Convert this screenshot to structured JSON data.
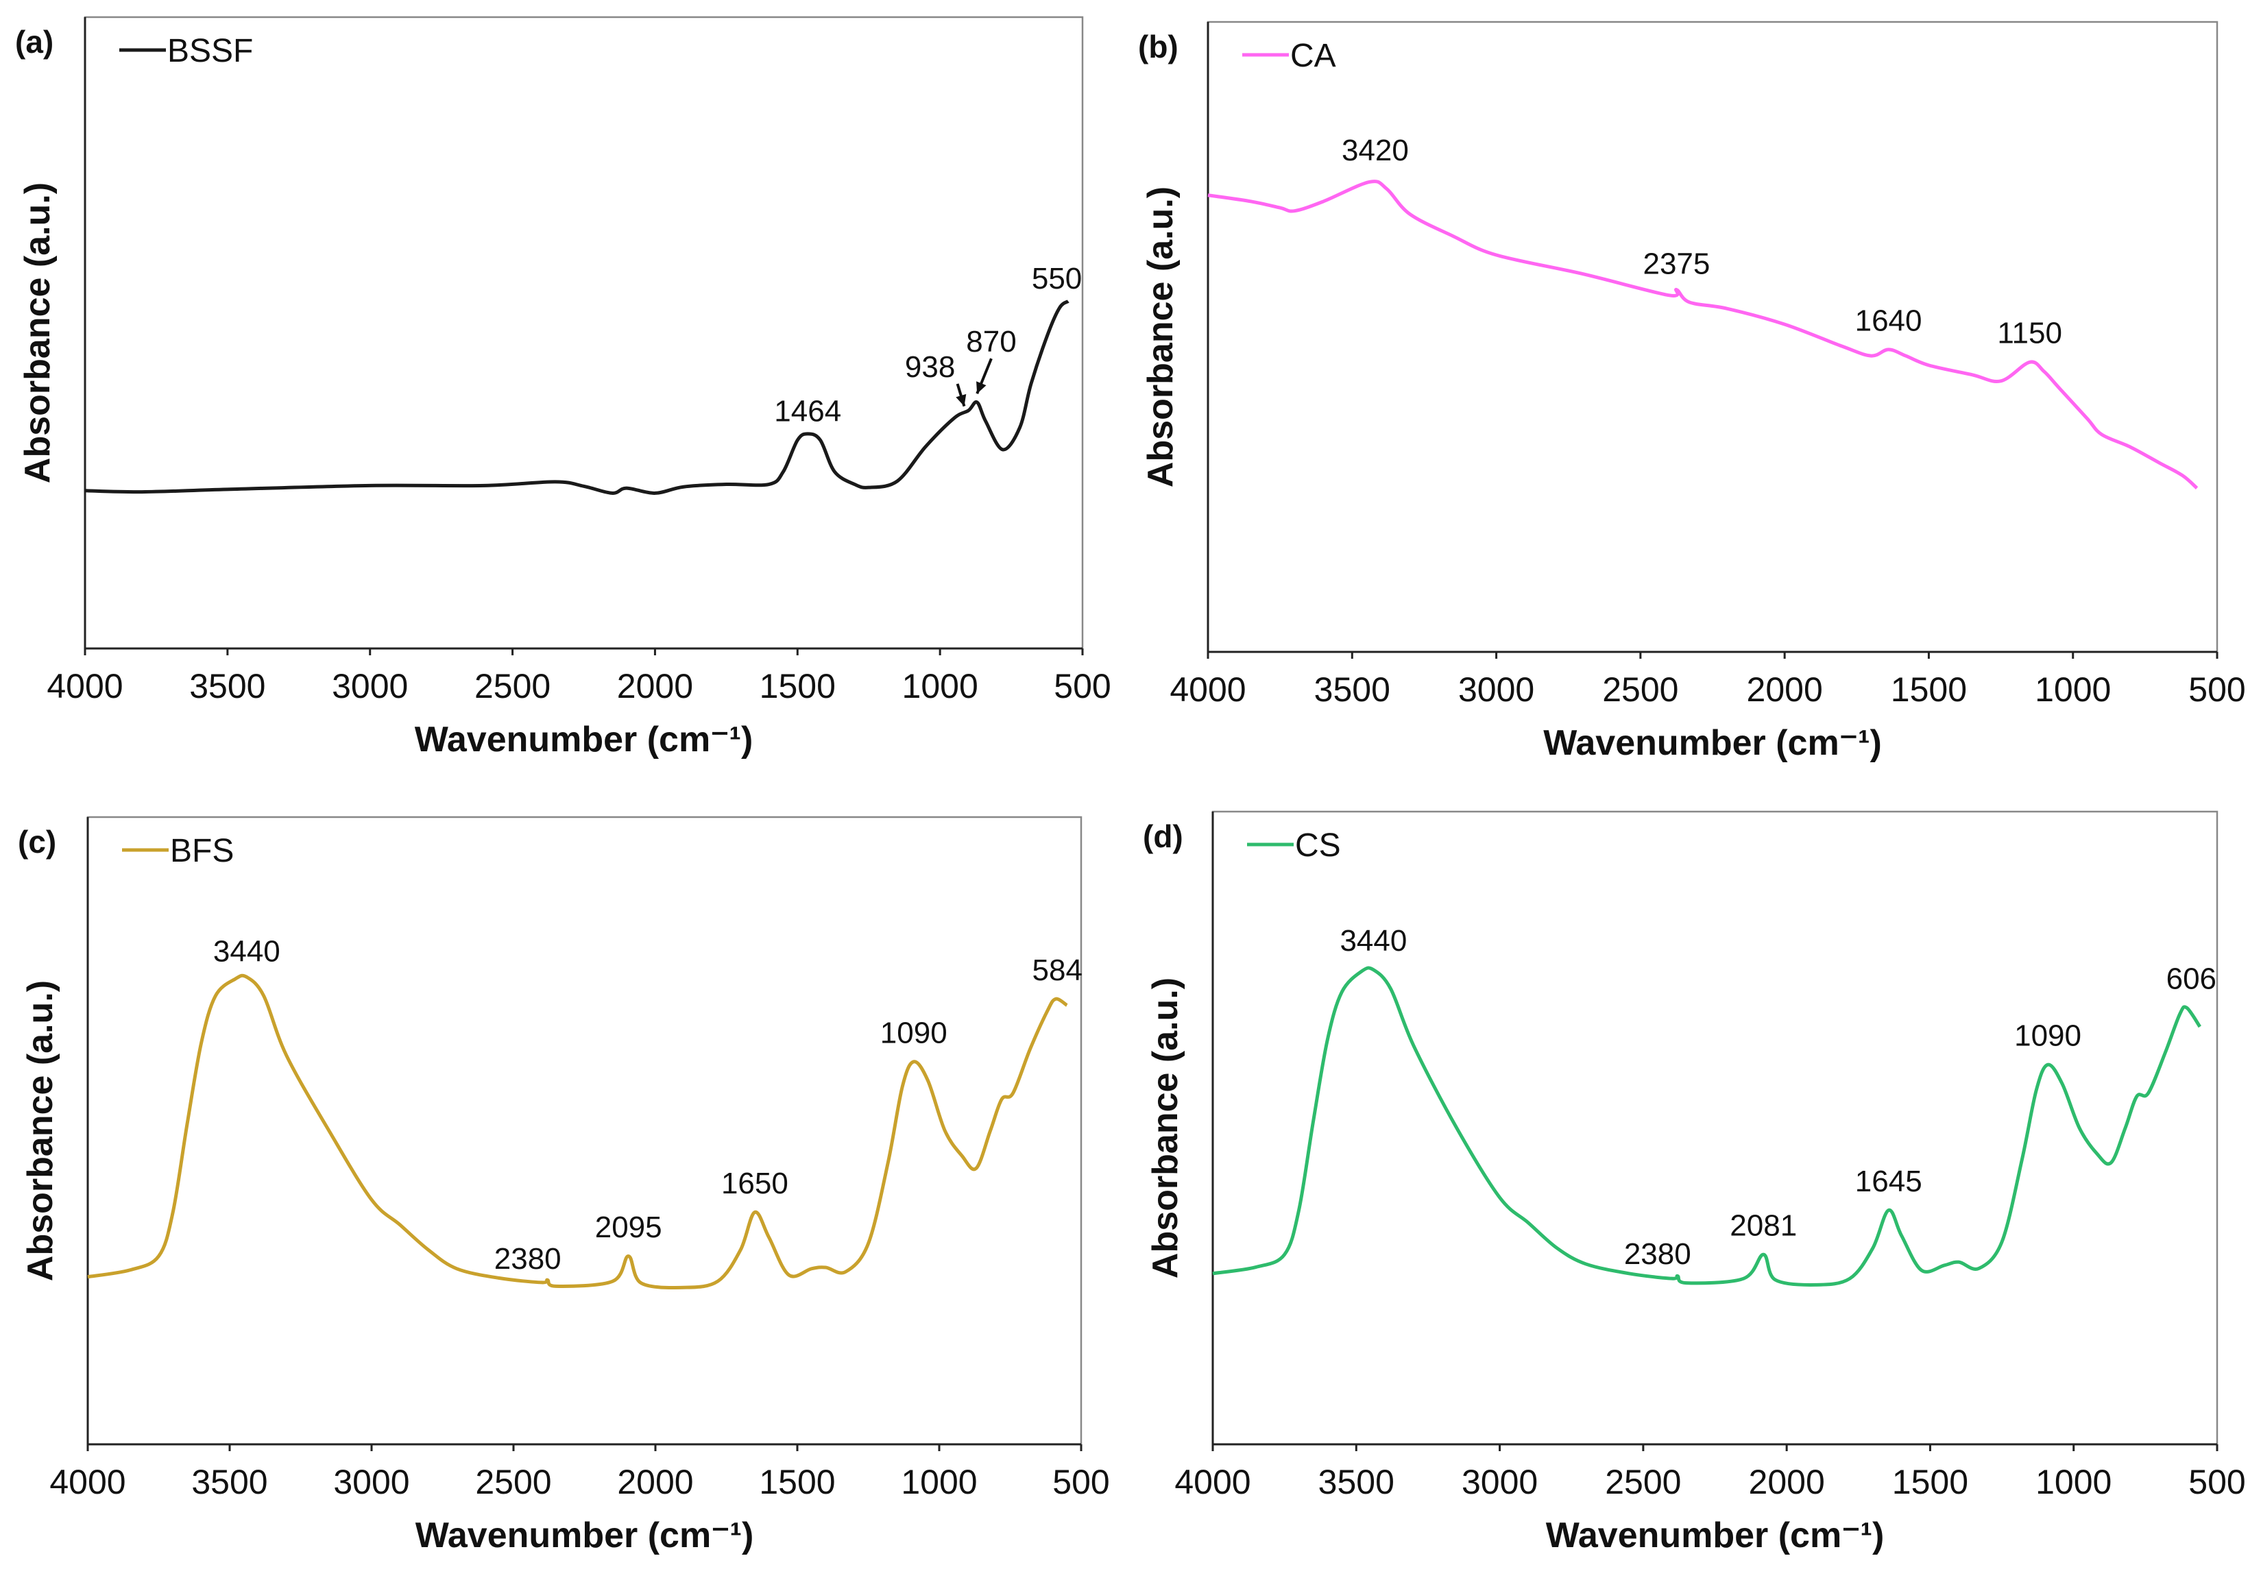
{
  "chart_data": [
    {
      "panel": "(a)",
      "type": "line",
      "legend": "BSSF",
      "color": "#1a1a1a",
      "xlabel": "Wavenumber (cm⁻¹)",
      "ylabel": "Absorbance (a.u.)",
      "xlim": [
        4000,
        500
      ],
      "ylim": [
        0,
        1
      ],
      "xticks": [
        "4000",
        "3500",
        "3000",
        "2500",
        "2000",
        "1500",
        "1000",
        "500"
      ],
      "points": [
        [
          4000,
          0.25
        ],
        [
          3800,
          0.248
        ],
        [
          3500,
          0.252
        ],
        [
          3000,
          0.258
        ],
        [
          2600,
          0.258
        ],
        [
          2350,
          0.264
        ],
        [
          2250,
          0.257
        ],
        [
          2150,
          0.246
        ],
        [
          2100,
          0.254
        ],
        [
          2000,
          0.246
        ],
        [
          1900,
          0.256
        ],
        [
          1750,
          0.26
        ],
        [
          1600,
          0.26
        ],
        [
          1550,
          0.28
        ],
        [
          1500,
          0.33
        ],
        [
          1464,
          0.34
        ],
        [
          1420,
          0.33
        ],
        [
          1370,
          0.28
        ],
        [
          1300,
          0.26
        ],
        [
          1250,
          0.255
        ],
        [
          1150,
          0.265
        ],
        [
          1050,
          0.32
        ],
        [
          950,
          0.365
        ],
        [
          900,
          0.377
        ],
        [
          870,
          0.39
        ],
        [
          840,
          0.36
        ],
        [
          780,
          0.315
        ],
        [
          720,
          0.35
        ],
        [
          680,
          0.42
        ],
        [
          620,
          0.5
        ],
        [
          580,
          0.54
        ],
        [
          550,
          0.55
        ]
      ],
      "annotations": [
        {
          "label": "1464",
          "x": 1464,
          "y": 0.36
        },
        {
          "label": "938",
          "x": 1035,
          "y": 0.43,
          "arrow_to": [
            915,
            0.375
          ]
        },
        {
          "label": "870",
          "x": 820,
          "y": 0.47,
          "arrow_to": [
            870,
            0.395
          ]
        },
        {
          "label": "550",
          "x": 590,
          "y": 0.57
        }
      ]
    },
    {
      "panel": "(b)",
      "type": "line",
      "legend": "CA",
      "color": "#ff66f2",
      "xlabel": "Wavenumber (cm⁻¹)",
      "ylabel": "Absorbance (a.u.)",
      "xlim": [
        4000,
        500
      ],
      "ylim": [
        0,
        1
      ],
      "xticks": [
        "4000",
        "3500",
        "3000",
        "2500",
        "2000",
        "1500",
        "1000",
        "500"
      ],
      "points": [
        [
          4000,
          0.725
        ],
        [
          3850,
          0.715
        ],
        [
          3750,
          0.705
        ],
        [
          3700,
          0.7
        ],
        [
          3600,
          0.715
        ],
        [
          3440,
          0.746
        ],
        [
          3380,
          0.735
        ],
        [
          3300,
          0.695
        ],
        [
          3150,
          0.66
        ],
        [
          3000,
          0.63
        ],
        [
          2700,
          0.6
        ],
        [
          2400,
          0.566
        ],
        [
          2375,
          0.575
        ],
        [
          2330,
          0.555
        ],
        [
          2200,
          0.545
        ],
        [
          2000,
          0.52
        ],
        [
          1800,
          0.485
        ],
        [
          1700,
          0.47
        ],
        [
          1640,
          0.48
        ],
        [
          1580,
          0.47
        ],
        [
          1500,
          0.455
        ],
        [
          1350,
          0.44
        ],
        [
          1250,
          0.43
        ],
        [
          1150,
          0.46
        ],
        [
          1100,
          0.445
        ],
        [
          1050,
          0.42
        ],
        [
          950,
          0.37
        ],
        [
          900,
          0.345
        ],
        [
          800,
          0.325
        ],
        [
          700,
          0.3
        ],
        [
          620,
          0.28
        ],
        [
          570,
          0.26
        ]
      ],
      "annotations": [
        {
          "label": "3420",
          "x": 3420,
          "y": 0.78
        },
        {
          "label": "2375",
          "x": 2375,
          "y": 0.6
        },
        {
          "label": "1640",
          "x": 1640,
          "y": 0.51
        },
        {
          "label": "1150",
          "x": 1150,
          "y": 0.49
        }
      ]
    },
    {
      "panel": "(c)",
      "type": "line",
      "legend": "BFS",
      "color": "#c9a12c",
      "xlabel": "Wavenumber (cm⁻¹)",
      "ylabel": "Absorbance (a.u.)",
      "xlim": [
        4000,
        500
      ],
      "ylim": [
        0,
        1
      ],
      "xticks": [
        "4000",
        "3500",
        "3000",
        "2500",
        "2000",
        "1500",
        "1000",
        "500"
      ],
      "points": [
        [
          4000,
          0.267
        ],
        [
          3850,
          0.278
        ],
        [
          3750,
          0.3
        ],
        [
          3700,
          0.37
        ],
        [
          3650,
          0.51
        ],
        [
          3600,
          0.64
        ],
        [
          3550,
          0.715
        ],
        [
          3480,
          0.742
        ],
        [
          3440,
          0.745
        ],
        [
          3380,
          0.715
        ],
        [
          3300,
          0.62
        ],
        [
          3150,
          0.5
        ],
        [
          3000,
          0.39
        ],
        [
          2900,
          0.35
        ],
        [
          2800,
          0.31
        ],
        [
          2700,
          0.28
        ],
        [
          2550,
          0.265
        ],
        [
          2400,
          0.258
        ],
        [
          2380,
          0.262
        ],
        [
          2350,
          0.252
        ],
        [
          2150,
          0.26
        ],
        [
          2095,
          0.3
        ],
        [
          2050,
          0.257
        ],
        [
          1900,
          0.25
        ],
        [
          1780,
          0.26
        ],
        [
          1700,
          0.31
        ],
        [
          1650,
          0.37
        ],
        [
          1600,
          0.33
        ],
        [
          1530,
          0.27
        ],
        [
          1450,
          0.28
        ],
        [
          1400,
          0.282
        ],
        [
          1330,
          0.275
        ],
        [
          1250,
          0.32
        ],
        [
          1180,
          0.45
        ],
        [
          1130,
          0.57
        ],
        [
          1090,
          0.61
        ],
        [
          1040,
          0.58
        ],
        [
          980,
          0.5
        ],
        [
          920,
          0.46
        ],
        [
          870,
          0.44
        ],
        [
          820,
          0.5
        ],
        [
          780,
          0.55
        ],
        [
          740,
          0.56
        ],
        [
          680,
          0.63
        ],
        [
          620,
          0.69
        ],
        [
          590,
          0.71
        ],
        [
          550,
          0.7
        ]
      ],
      "annotations": [
        {
          "label": "3440",
          "x": 3440,
          "y": 0.77
        },
        {
          "label": "2380",
          "x": 2450,
          "y": 0.28
        },
        {
          "label": "2095",
          "x": 2095,
          "y": 0.33
        },
        {
          "label": "1650",
          "x": 1650,
          "y": 0.4
        },
        {
          "label": "1090",
          "x": 1090,
          "y": 0.64
        },
        {
          "label": "584",
          "x": 584,
          "y": 0.74
        }
      ]
    },
    {
      "panel": "(d)",
      "type": "line",
      "legend": "CS",
      "color": "#2ebb6c",
      "xlabel": "Wavenumber (cm⁻¹)",
      "ylabel": "Absorbance (a.u.)",
      "xlim": [
        4000,
        500
      ],
      "ylim": [
        0,
        1
      ],
      "xticks": [
        "4000",
        "3500",
        "3000",
        "2500",
        "2000",
        "1500",
        "1000",
        "500"
      ],
      "points": [
        [
          4000,
          0.27
        ],
        [
          3850,
          0.28
        ],
        [
          3750,
          0.3
        ],
        [
          3700,
          0.37
        ],
        [
          3650,
          0.51
        ],
        [
          3600,
          0.64
        ],
        [
          3550,
          0.715
        ],
        [
          3480,
          0.748
        ],
        [
          3440,
          0.75
        ],
        [
          3380,
          0.72
        ],
        [
          3300,
          0.63
        ],
        [
          3150,
          0.5
        ],
        [
          3000,
          0.39
        ],
        [
          2900,
          0.35
        ],
        [
          2800,
          0.31
        ],
        [
          2700,
          0.285
        ],
        [
          2550,
          0.27
        ],
        [
          2400,
          0.262
        ],
        [
          2380,
          0.266
        ],
        [
          2350,
          0.255
        ],
        [
          2150,
          0.262
        ],
        [
          2081,
          0.3
        ],
        [
          2040,
          0.26
        ],
        [
          1900,
          0.252
        ],
        [
          1780,
          0.262
        ],
        [
          1700,
          0.31
        ],
        [
          1645,
          0.37
        ],
        [
          1600,
          0.33
        ],
        [
          1530,
          0.275
        ],
        [
          1450,
          0.283
        ],
        [
          1400,
          0.288
        ],
        [
          1330,
          0.278
        ],
        [
          1250,
          0.32
        ],
        [
          1180,
          0.45
        ],
        [
          1130,
          0.56
        ],
        [
          1090,
          0.6
        ],
        [
          1040,
          0.57
        ],
        [
          980,
          0.5
        ],
        [
          920,
          0.46
        ],
        [
          870,
          0.445
        ],
        [
          820,
          0.5
        ],
        [
          780,
          0.55
        ],
        [
          740,
          0.555
        ],
        [
          680,
          0.62
        ],
        [
          630,
          0.68
        ],
        [
          606,
          0.69
        ],
        [
          560,
          0.66
        ]
      ],
      "annotations": [
        {
          "label": "3440",
          "x": 3440,
          "y": 0.78
        },
        {
          "label": "2380",
          "x": 2450,
          "y": 0.285
        },
        {
          "label": "2081",
          "x": 2081,
          "y": 0.33
        },
        {
          "label": "1645",
          "x": 1645,
          "y": 0.4
        },
        {
          "label": "1090",
          "x": 1090,
          "y": 0.63
        },
        {
          "label": "606",
          "x": 590,
          "y": 0.72
        }
      ]
    }
  ]
}
